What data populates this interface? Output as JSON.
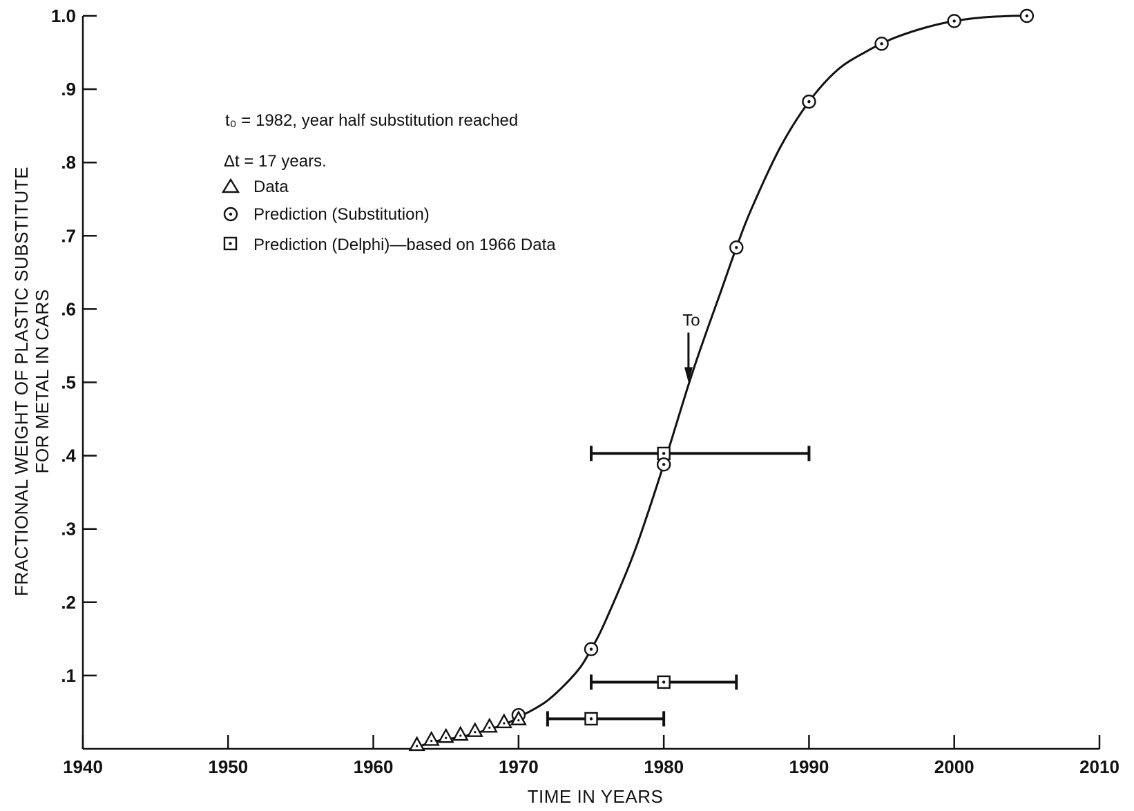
{
  "chart_data": {
    "type": "line",
    "xlabel": "TIME IN YEARS",
    "ylabel_line1": "FRACTIONAL WEIGHT OF PLASTIC SUBSTITUTE",
    "ylabel_line2": "FOR METAL IN CARS",
    "xlim": [
      1940,
      2010
    ],
    "ylim": [
      0,
      1.0
    ],
    "x_ticks": [
      1940,
      1950,
      1960,
      1970,
      1980,
      1990,
      2000,
      2010
    ],
    "x_tick_labels": [
      "1940",
      "1950",
      "1960",
      "1970",
      "1980",
      "1990",
      "2000",
      "2010"
    ],
    "y_ticks": [
      0.1,
      0.2,
      0.3,
      0.4,
      0.5,
      0.6,
      0.7,
      0.8,
      0.9,
      1.0
    ],
    "y_tick_labels": [
      ".1",
      ".2",
      ".3",
      ".4",
      ".5",
      ".6",
      ".7",
      ".8",
      ".9",
      "1.0"
    ],
    "legend": {
      "line1": "t₀ = 1982, year half substitution reached",
      "line2": "Δt = 17 years.",
      "items": [
        {
          "marker": "triangle",
          "label": "Data"
        },
        {
          "marker": "circle-dot",
          "label": "Prediction (Substitution)"
        },
        {
          "marker": "square-dot",
          "label": "Prediction (Delphi)—based on 1966 Data"
        }
      ]
    },
    "annotation": {
      "label": "To",
      "x": 1981.7,
      "y": 0.5
    },
    "series": [
      {
        "name": "Data",
        "marker": "triangle",
        "x": [
          1963,
          1964,
          1965,
          1966,
          1967,
          1968,
          1969,
          1970
        ],
        "y": [
          0.002,
          0.009,
          0.013,
          0.016,
          0.021,
          0.027,
          0.033,
          0.037
        ]
      },
      {
        "name": "Prediction (Substitution)",
        "marker": "circle-dot",
        "x": [
          1970,
          1975,
          1980,
          1985,
          1990,
          1995,
          2000,
          2005
        ],
        "y": [
          0.046,
          0.136,
          0.388,
          0.684,
          0.883,
          0.962,
          0.993,
          1.0
        ]
      },
      {
        "name": "Prediction (Delphi)—based on 1966 Data",
        "marker": "square-dot",
        "points": [
          {
            "x": 1980,
            "y": 0.403,
            "x_low": 1975,
            "x_high": 1990
          },
          {
            "x": 1980,
            "y": 0.091,
            "x_low": 1975,
            "x_high": 1985
          },
          {
            "x": 1975,
            "y": 0.041,
            "x_low": 1972,
            "x_high": 1980
          }
        ]
      }
    ],
    "curve": {
      "x": [
        1963,
        1964,
        1965,
        1966,
        1967,
        1968,
        1969,
        1970,
        1972,
        1974,
        1975,
        1976,
        1978,
        1980,
        1982,
        1984,
        1985,
        1986,
        1988,
        1990,
        1992,
        1994,
        1995,
        1996,
        1998,
        2000,
        2002,
        2004,
        2005
      ],
      "y": [
        0.002,
        0.009,
        0.013,
        0.016,
        0.021,
        0.027,
        0.033,
        0.043,
        0.066,
        0.105,
        0.136,
        0.175,
        0.27,
        0.388,
        0.515,
        0.628,
        0.684,
        0.735,
        0.82,
        0.883,
        0.927,
        0.952,
        0.962,
        0.971,
        0.984,
        0.993,
        0.998,
        1.0,
        1.0
      ]
    }
  }
}
